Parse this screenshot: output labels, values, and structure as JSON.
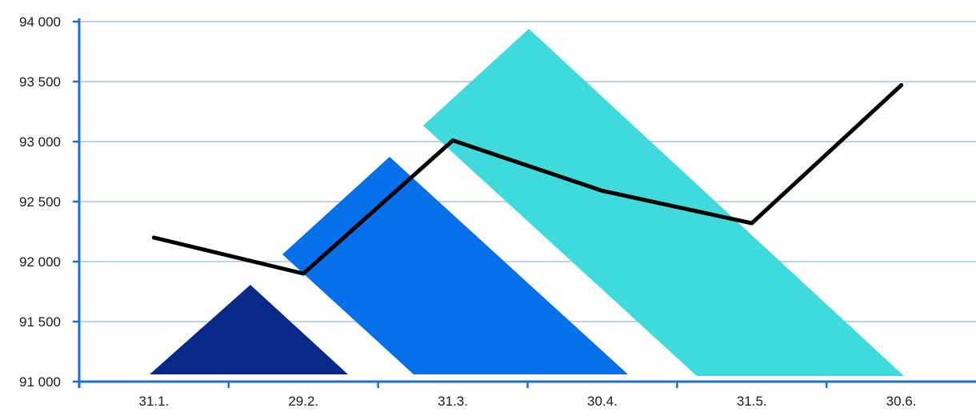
{
  "chart_data": {
    "type": "line",
    "categories": [
      "31.1.",
      "29.2.",
      "31.3.",
      "30.4.",
      "31.5.",
      "30.6."
    ],
    "series": [
      {
        "values": [
          92200,
          91900,
          93010,
          92590,
          92320,
          93470
        ],
        "color": "#000000"
      }
    ],
    "y_ticks": [
      "91 000",
      "91 500",
      "92 000",
      "92 500",
      "93 000",
      "93 500",
      "94 000"
    ],
    "ylim": [
      91000,
      94000
    ],
    "grid": true,
    "decorative_shapes": [
      {
        "name": "navy-triangle",
        "color": "#0a2a8a"
      },
      {
        "name": "blue-parallelogram",
        "color": "#0570ea"
      },
      {
        "name": "cyan-parallelogram",
        "color": "#3fdbdc"
      }
    ],
    "colors": {
      "axis": "#1a6fd9",
      "grid": "#a9c4ea"
    }
  }
}
